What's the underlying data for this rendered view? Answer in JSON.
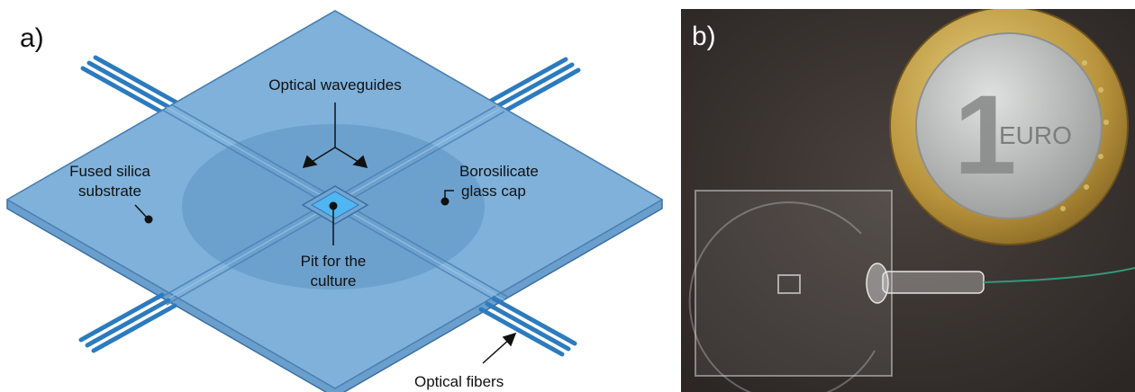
{
  "panel_a": {
    "letter": "a)",
    "labels": {
      "optical_waveguides": "Optical waveguides",
      "fused_silica_line1": "Fused silica",
      "fused_silica_line2": "substrate",
      "borosilicate_line1": "Borosilicate",
      "borosilicate_line2": "glass cap",
      "pit_line1": "Pit for the",
      "pit_line2": "culture",
      "optical_fibers": "Optical fibers"
    },
    "colors": {
      "glass_fill": "#7fb1da",
      "glass_dark": "#5c93c4",
      "edge": "#3d6fa0",
      "fiber": "#2c7bbf",
      "pit": "#4fb6f2",
      "annotation": "#111111"
    }
  },
  "panel_b": {
    "letter": "b)",
    "coin_text": "EURO",
    "coin_numeral": "1",
    "colors": {
      "background": "#3b3532",
      "coin_outer": "#c9a94f",
      "coin_inner": "#bfc1c0",
      "fiber": "#2f9a7a"
    }
  }
}
